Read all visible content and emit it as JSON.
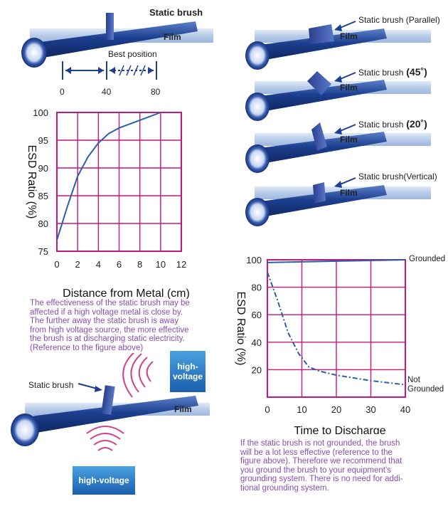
{
  "top_left": {
    "title": "Static brush",
    "film": "Film",
    "best_position": "Best position",
    "scale": [
      "0",
      "40",
      "80"
    ]
  },
  "right_panels": [
    {
      "brush": "Static brush (Parallel)",
      "film": "Film"
    },
    {
      "brush": "Static brush",
      "angle": "(45˚)",
      "film": "Film"
    },
    {
      "brush": "Static brush",
      "angle": "(20˚)",
      "film": "Film"
    },
    {
      "brush": "Static brush(Vertical)",
      "film": "Film"
    }
  ],
  "bottom_left": {
    "brush": "Static brush",
    "film": "Film",
    "hv_top_line1": "high-",
    "hv_top_line2": "voltage",
    "hv_bottom": "high-voltage"
  },
  "desc1": [
    "The effectiveness of the static brush may be",
    "affected if a high voltage metal is close by.",
    "The further away the static brush is away",
    "from high voltage source, the more effective",
    "the brush is at discharging static electricity.",
    "(Reference to the figure above)"
  ],
  "desc2": [
    "If the static brush is not grounded, the brush",
    "will be a lot less effective (reference to the",
    "figure above). Therefore we recommend that",
    "you ground the brush to your equipment's",
    "grounding system. There is no need for addi-",
    "tional grounding system."
  ],
  "colors": {
    "grid": "#c2187a",
    "line": "#2b5ea8",
    "desc": "#8a4db3",
    "roller": "#1c3f8f",
    "film": "#b9cdea"
  },
  "chart_data": [
    {
      "type": "line",
      "xlabel": "Distance from Metal (cm)",
      "ylabel": "ESD Ratio (%)",
      "xlim": [
        0,
        12
      ],
      "ylim": [
        75,
        100
      ],
      "xticks": [
        "0",
        "2",
        "4",
        "6",
        "8",
        "10",
        "12"
      ],
      "yticks": [
        "100",
        "95",
        "90",
        "85",
        "80",
        "75"
      ],
      "grid": true,
      "series": [
        {
          "values": [
            [
              0,
              77
            ],
            [
              1,
              83
            ],
            [
              2,
              88.5
            ],
            [
              3,
              92
            ],
            [
              4,
              94.5
            ],
            [
              5,
              96.2
            ],
            [
              6,
              97.2
            ],
            [
              8,
              98.6
            ],
            [
              10,
              100
            ]
          ]
        }
      ]
    },
    {
      "type": "line",
      "xlabel": "Time to Discharge",
      "ylabel": "ESD Ratio (%)",
      "xlim": [
        0,
        40
      ],
      "ylim": [
        0,
        100
      ],
      "xticks": [
        "0",
        "10",
        "20",
        "30",
        "40"
      ],
      "yticks": [
        "100",
        "80",
        "60",
        "40",
        "20"
      ],
      "grid": true,
      "series": [
        {
          "name": "Grounded",
          "style": "solid",
          "values": [
            [
              0,
              98
            ],
            [
              10,
              98.5
            ],
            [
              20,
              99
            ],
            [
              30,
              99.5
            ],
            [
              40,
              100
            ]
          ]
        },
        {
          "name": "Not Grounded",
          "name_lines": [
            "Not",
            "Grounded"
          ],
          "style": "dashdot",
          "values": [
            [
              0,
              91
            ],
            [
              3,
              70
            ],
            [
              6,
              47
            ],
            [
              9,
              32
            ],
            [
              12,
              22
            ],
            [
              15,
              19
            ],
            [
              20,
              16
            ],
            [
              30,
              12
            ],
            [
              40,
              9
            ]
          ]
        }
      ]
    }
  ]
}
